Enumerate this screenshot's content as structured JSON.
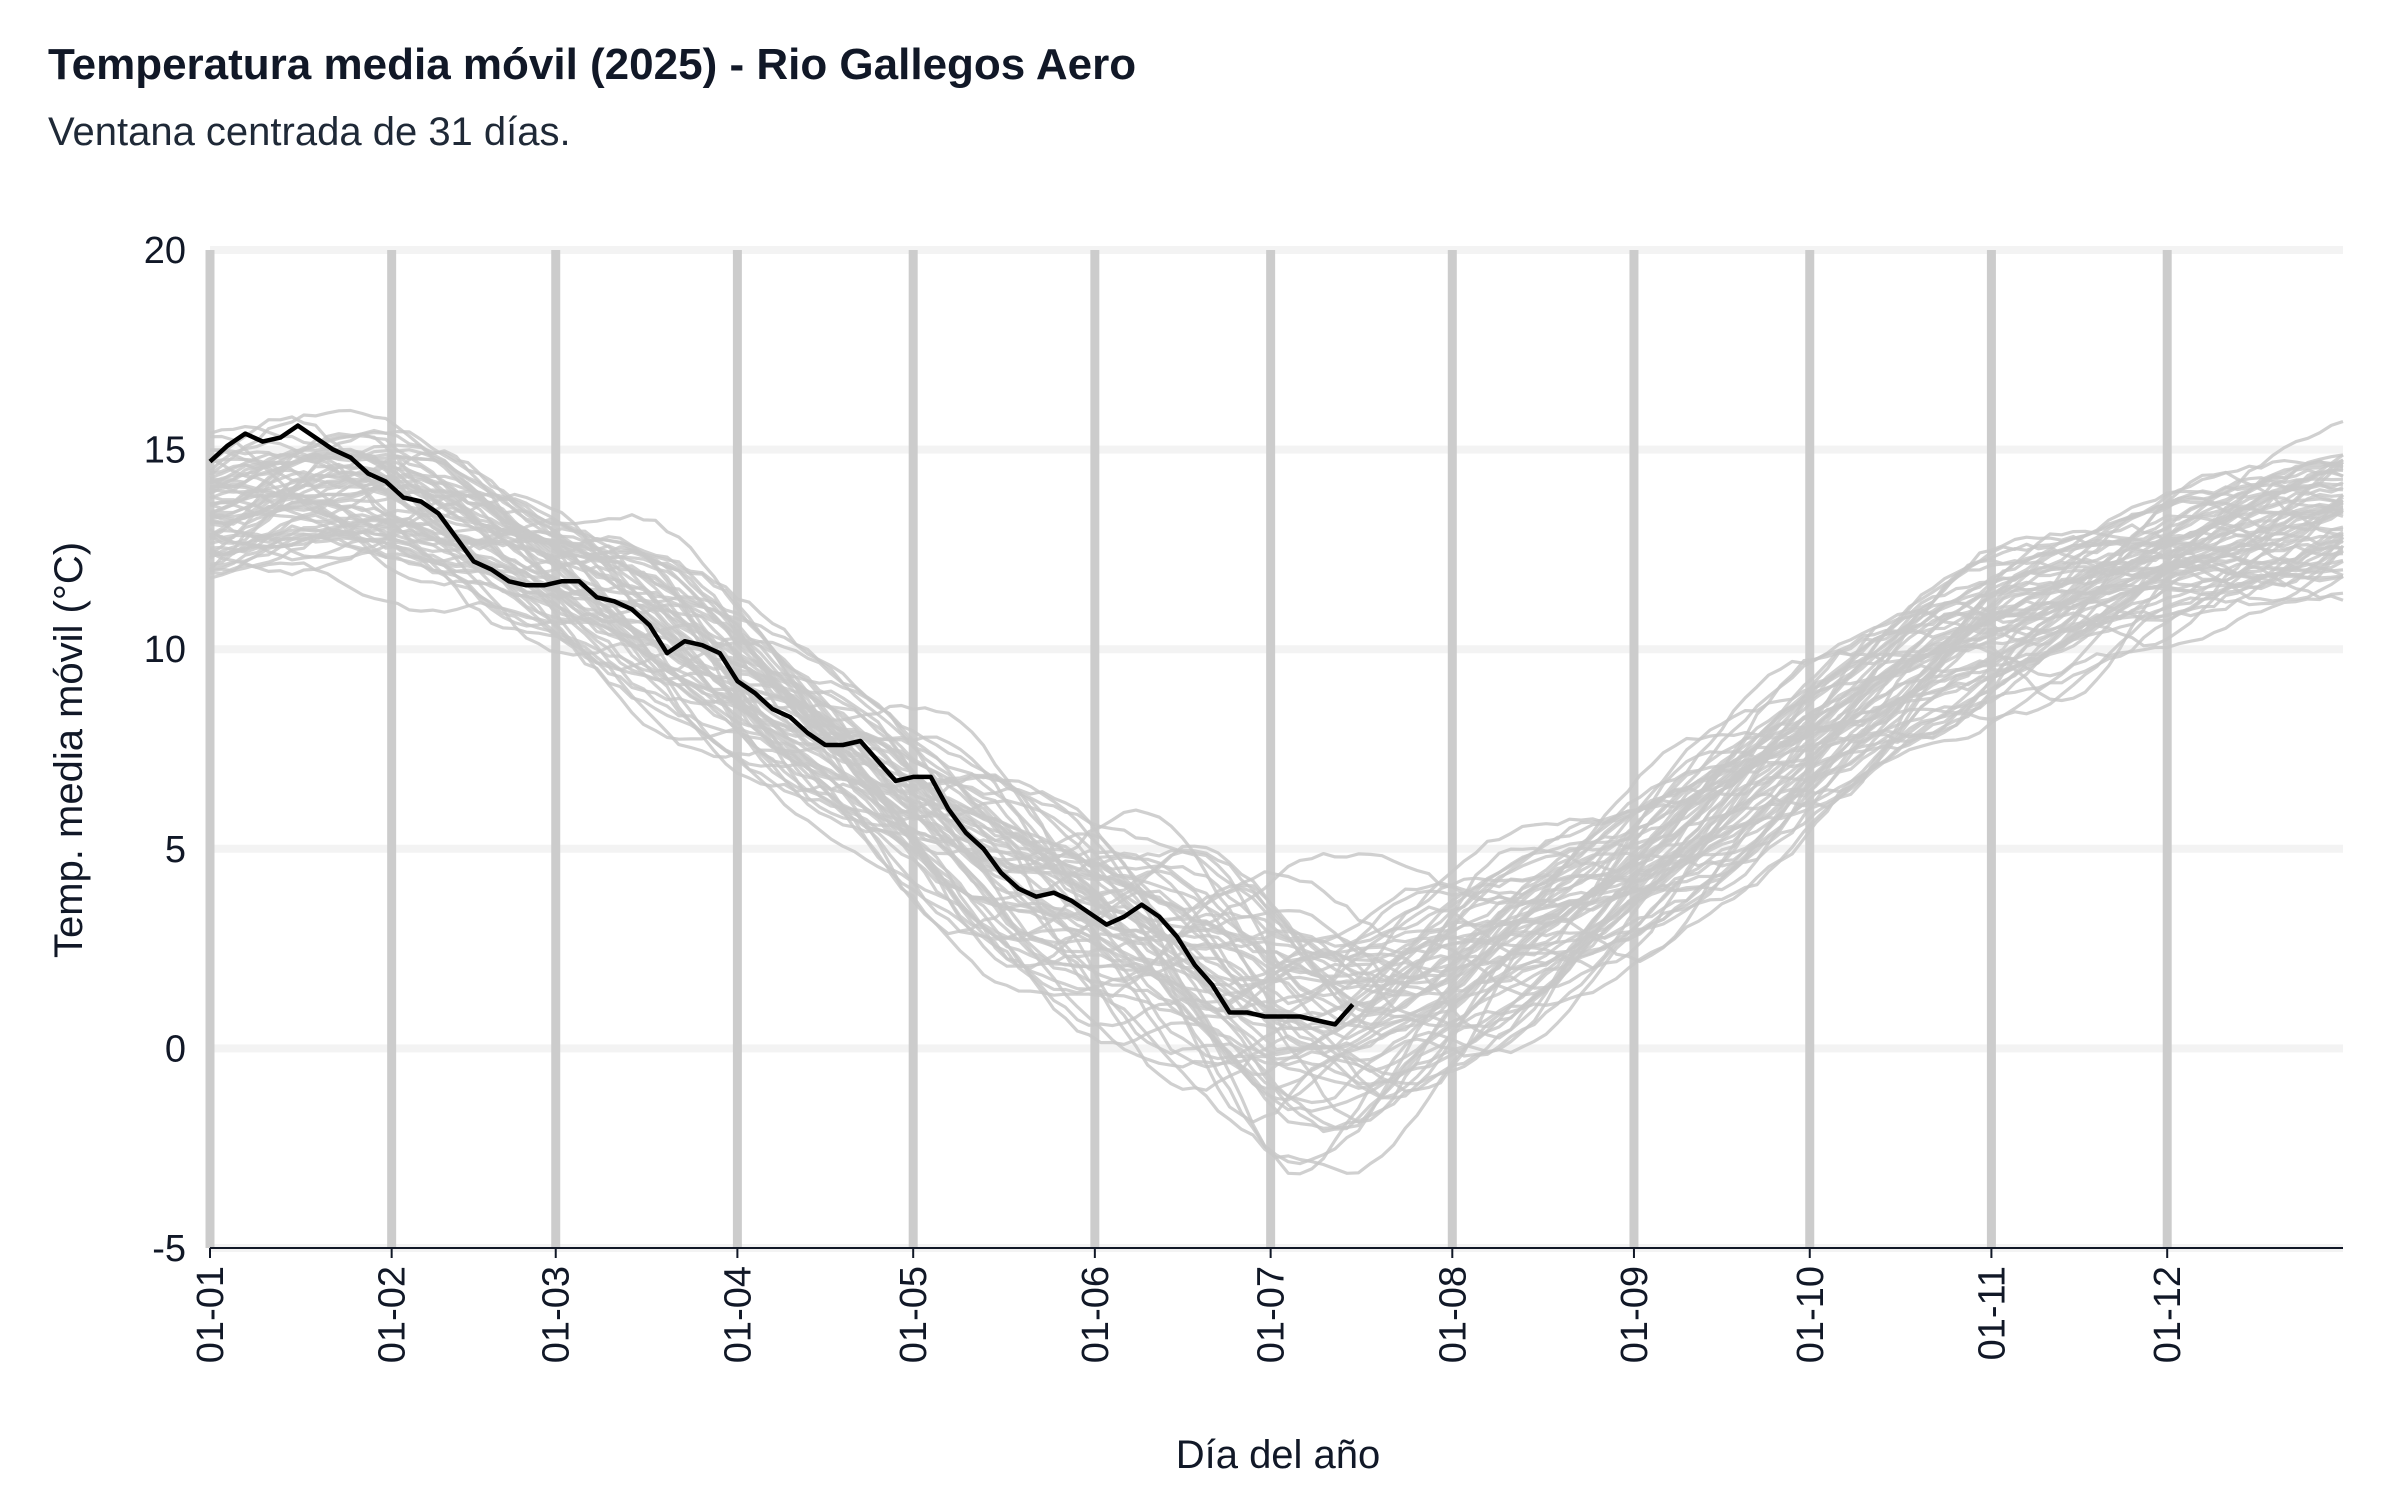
{
  "title": "Temperatura media móvil (2025) - Rio Gallegos Aero",
  "subtitle": "Ventana centrada de 31 días.",
  "chart_data": {
    "type": "line",
    "title": "Temperatura media móvil (2025) - Rio Gallegos Aero",
    "subtitle": "Ventana centrada de 31 días.",
    "xlabel": "Día del año",
    "ylabel": "Temp. media móvil (°C)",
    "ylim": [
      -5,
      20
    ],
    "yticks": [
      -5,
      0,
      5,
      10,
      15,
      20
    ],
    "xlim": [
      1,
      365
    ],
    "xticks": [
      {
        "label": "01-01",
        "day": 1
      },
      {
        "label": "01-02",
        "day": 32
      },
      {
        "label": "01-03",
        "day": 60
      },
      {
        "label": "01-04",
        "day": 91
      },
      {
        "label": "01-05",
        "day": 121
      },
      {
        "label": "01-06",
        "day": 152
      },
      {
        "label": "01-07",
        "day": 182
      },
      {
        "label": "01-08",
        "day": 213
      },
      {
        "label": "01-09",
        "day": 244
      },
      {
        "label": "01-10",
        "day": 274
      },
      {
        "label": "01-11",
        "day": 305
      },
      {
        "label": "01-12",
        "day": 335
      }
    ],
    "grid": true,
    "colors": {
      "highlight": "#000000",
      "historical": "#c8c8c8",
      "vgrid": "#cccccc",
      "hgrid": "#f3f3f3",
      "axis": "#111827"
    },
    "highlight_series": {
      "year": "2025",
      "x": [
        1,
        4,
        7,
        10,
        13,
        16,
        19,
        22,
        25,
        28,
        31,
        34,
        37,
        40,
        43,
        46,
        49,
        52,
        55,
        58,
        61,
        64,
        67,
        70,
        73,
        76,
        79,
        82,
        85,
        88,
        91,
        94,
        97,
        100,
        103,
        106,
        109,
        112,
        115,
        118,
        121,
        124,
        127,
        130,
        133,
        136,
        139,
        142,
        145,
        148,
        151,
        154,
        157,
        160,
        163,
        166,
        169,
        172,
        175,
        178,
        181,
        184,
        187,
        190,
        193,
        196
      ],
      "y": [
        14.7,
        15.1,
        15.4,
        15.2,
        15.3,
        15.6,
        15.3,
        15.0,
        14.8,
        14.4,
        14.2,
        13.8,
        13.7,
        13.4,
        12.8,
        12.2,
        12.0,
        11.7,
        11.6,
        11.6,
        11.7,
        11.7,
        11.3,
        11.2,
        11.0,
        10.6,
        9.9,
        10.2,
        10.1,
        9.9,
        9.2,
        8.9,
        8.5,
        8.3,
        7.9,
        7.6,
        7.6,
        7.7,
        7.2,
        6.7,
        6.8,
        6.8,
        6.0,
        5.4,
        5.0,
        4.4,
        4.0,
        3.8,
        3.9,
        3.7,
        3.4,
        3.1,
        3.3,
        3.6,
        3.3,
        2.8,
        2.1,
        1.6,
        0.9,
        0.9,
        0.8,
        0.8,
        0.8,
        0.7,
        0.6,
        1.1
      ]
    },
    "historical_series_count": 60,
    "historical_band": {
      "x": [
        1,
        15,
        32,
        46,
        60,
        75,
        91,
        106,
        121,
        137,
        152,
        167,
        182,
        197,
        213,
        228,
        244,
        259,
        274,
        290,
        305,
        320,
        335,
        350,
        365
      ],
      "mean": [
        13.5,
        13.9,
        13.7,
        13.0,
        12.0,
        10.7,
        9.2,
        7.6,
        6.0,
        4.6,
        3.4,
        2.2,
        1.0,
        0.8,
        1.8,
        3.0,
        4.5,
        6.0,
        7.7,
        9.2,
        10.5,
        11.4,
        12.2,
        12.9,
        13.4
      ],
      "spread": [
        1.4,
        1.4,
        1.5,
        1.5,
        1.5,
        1.6,
        1.6,
        1.7,
        1.8,
        2.0,
        2.2,
        2.4,
        2.5,
        2.3,
        2.0,
        1.7,
        1.5,
        1.5,
        1.5,
        1.5,
        1.5,
        1.4,
        1.4,
        1.4,
        1.4
      ]
    }
  }
}
